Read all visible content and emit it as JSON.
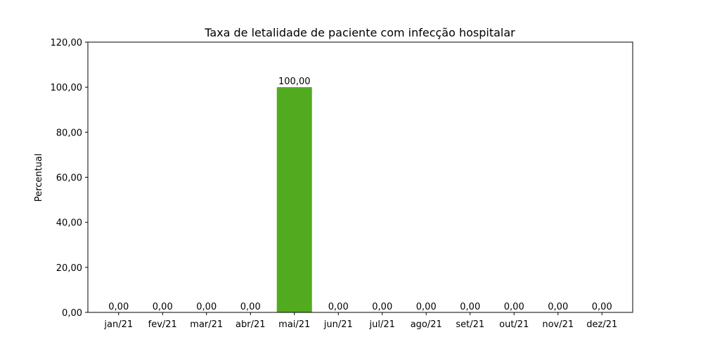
{
  "chart_data": {
    "type": "bar",
    "title": "Taxa de letalidade de paciente com infecção hospitalar",
    "xlabel": "",
    "ylabel": "Percentual",
    "categories": [
      "jan/21",
      "fev/21",
      "mar/21",
      "abr/21",
      "mai/21",
      "jun/21",
      "jul/21",
      "ago/21",
      "set/21",
      "out/21",
      "nov/21",
      "dez/21"
    ],
    "values": [
      0,
      0,
      0,
      0,
      100,
      0,
      0,
      0,
      0,
      0,
      0,
      0
    ],
    "value_labels": [
      "0,00",
      "0,00",
      "0,00",
      "0,00",
      "100,00",
      "0,00",
      "0,00",
      "0,00",
      "0,00",
      "0,00",
      "0,00",
      "0,00"
    ],
    "ylim": [
      0,
      120
    ],
    "yticks": [
      0,
      20,
      40,
      60,
      80,
      100,
      120
    ],
    "ytick_labels": [
      "0,00",
      "20,00",
      "40,00",
      "60,00",
      "80,00",
      "100,00",
      "120,00"
    ],
    "grid": false,
    "bar_color": "#52ab1f"
  }
}
